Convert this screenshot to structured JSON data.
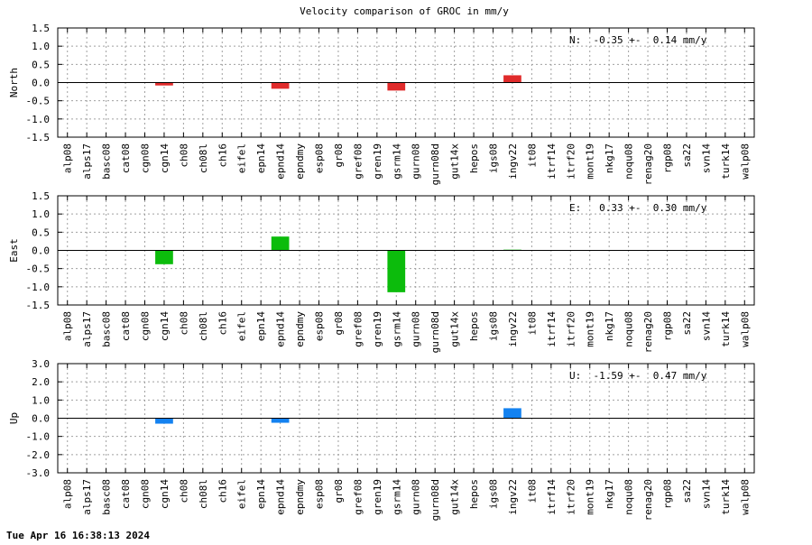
{
  "title": "Velocity comparison of GROC in mm/y",
  "timestamp": "Tue Apr 16 16:38:13 2024",
  "colors": {
    "north": "#e02b2b",
    "east": "#0cbc0c",
    "up": "#1482f0",
    "grid": "#a0a0a0",
    "axis": "#000000"
  },
  "chart_data": [
    {
      "type": "bar",
      "ylabel": "North",
      "annotation": "N:  -0.35 +-  0.14 mm/y",
      "ylim": [
        -1.5,
        1.5
      ],
      "yticks": [
        "-1.5",
        "-1.0",
        "-0.5",
        "0.0",
        "0.5",
        "1.0",
        "1.5"
      ],
      "ytick_values": [
        -1.5,
        -1.0,
        -0.5,
        0.0,
        0.5,
        1.0,
        1.5
      ],
      "grid": true,
      "categories": [
        "alp08",
        "alps17",
        "basc08",
        "cat08",
        "cgn08",
        "cgn14",
        "ch08",
        "ch08l",
        "ch16",
        "eifel",
        "epn14",
        "epnd14",
        "epndmy",
        "esp08",
        "gr08",
        "gref08",
        "gren19",
        "gsrm14",
        "gurn08",
        "gurn08d",
        "gut14x",
        "hepos",
        "igs08",
        "ingv22",
        "it08",
        "itrf14",
        "itrf20",
        "mont19",
        "nkg17",
        "noqu08",
        "renag20",
        "rgp08",
        "sa22",
        "svn14",
        "turk14",
        "walp08"
      ],
      "values": [
        null,
        null,
        null,
        null,
        null,
        -0.08,
        null,
        null,
        null,
        null,
        null,
        -0.17,
        null,
        null,
        null,
        null,
        null,
        -0.22,
        null,
        null,
        null,
        null,
        null,
        0.2,
        null,
        null,
        null,
        null,
        null,
        null,
        null,
        null,
        null,
        null,
        null,
        null
      ],
      "color_key": "north"
    },
    {
      "type": "bar",
      "ylabel": "East",
      "annotation": "E:   0.33 +-  0.30 mm/y",
      "ylim": [
        -1.5,
        1.5
      ],
      "yticks": [
        "-1.5",
        "-1.0",
        "-0.5",
        "0.0",
        "0.5",
        "1.0",
        "1.5"
      ],
      "ytick_values": [
        -1.5,
        -1.0,
        -0.5,
        0.0,
        0.5,
        1.0,
        1.5
      ],
      "grid": true,
      "categories": [
        "alp08",
        "alps17",
        "basc08",
        "cat08",
        "cgn08",
        "cgn14",
        "ch08",
        "ch08l",
        "ch16",
        "eifel",
        "epn14",
        "epnd14",
        "epndmy",
        "esp08",
        "gr08",
        "gref08",
        "gren19",
        "gsrm14",
        "gurn08",
        "gurn08d",
        "gut14x",
        "hepos",
        "igs08",
        "ingv22",
        "it08",
        "itrf14",
        "itrf20",
        "mont19",
        "nkg17",
        "noqu08",
        "renag20",
        "rgp08",
        "sa22",
        "svn14",
        "turk14",
        "walp08"
      ],
      "values": [
        null,
        null,
        null,
        null,
        null,
        -0.38,
        null,
        null,
        null,
        null,
        null,
        0.38,
        null,
        null,
        null,
        null,
        null,
        -1.15,
        null,
        null,
        null,
        null,
        null,
        0.02,
        null,
        null,
        null,
        null,
        null,
        null,
        null,
        null,
        null,
        null,
        null,
        null
      ],
      "color_key": "east"
    },
    {
      "type": "bar",
      "ylabel": "Up",
      "annotation": "U:  -1.59 +-  0.47 mm/y",
      "ylim": [
        -3.0,
        3.0
      ],
      "yticks": [
        "-3.0",
        "-2.0",
        "-1.0",
        "0.0",
        "1.0",
        "2.0",
        "3.0"
      ],
      "ytick_values": [
        -3.0,
        -2.0,
        -1.0,
        0.0,
        1.0,
        2.0,
        3.0
      ],
      "grid": true,
      "categories": [
        "alp08",
        "alps17",
        "basc08",
        "cat08",
        "cgn08",
        "cgn14",
        "ch08",
        "ch08l",
        "ch16",
        "eifel",
        "epn14",
        "epnd14",
        "epndmy",
        "esp08",
        "gr08",
        "gref08",
        "gren19",
        "gsrm14",
        "gurn08",
        "gurn08d",
        "gut14x",
        "hepos",
        "igs08",
        "ingv22",
        "it08",
        "itrf14",
        "itrf20",
        "mont19",
        "nkg17",
        "noqu08",
        "renag20",
        "rgp08",
        "sa22",
        "svn14",
        "turk14",
        "walp08"
      ],
      "values": [
        null,
        null,
        null,
        null,
        null,
        -0.3,
        null,
        null,
        null,
        null,
        null,
        -0.25,
        null,
        null,
        null,
        null,
        null,
        null,
        null,
        null,
        null,
        null,
        null,
        0.55,
        null,
        null,
        null,
        null,
        null,
        null,
        null,
        null,
        null,
        null,
        null,
        null
      ],
      "color_key": "up"
    }
  ]
}
